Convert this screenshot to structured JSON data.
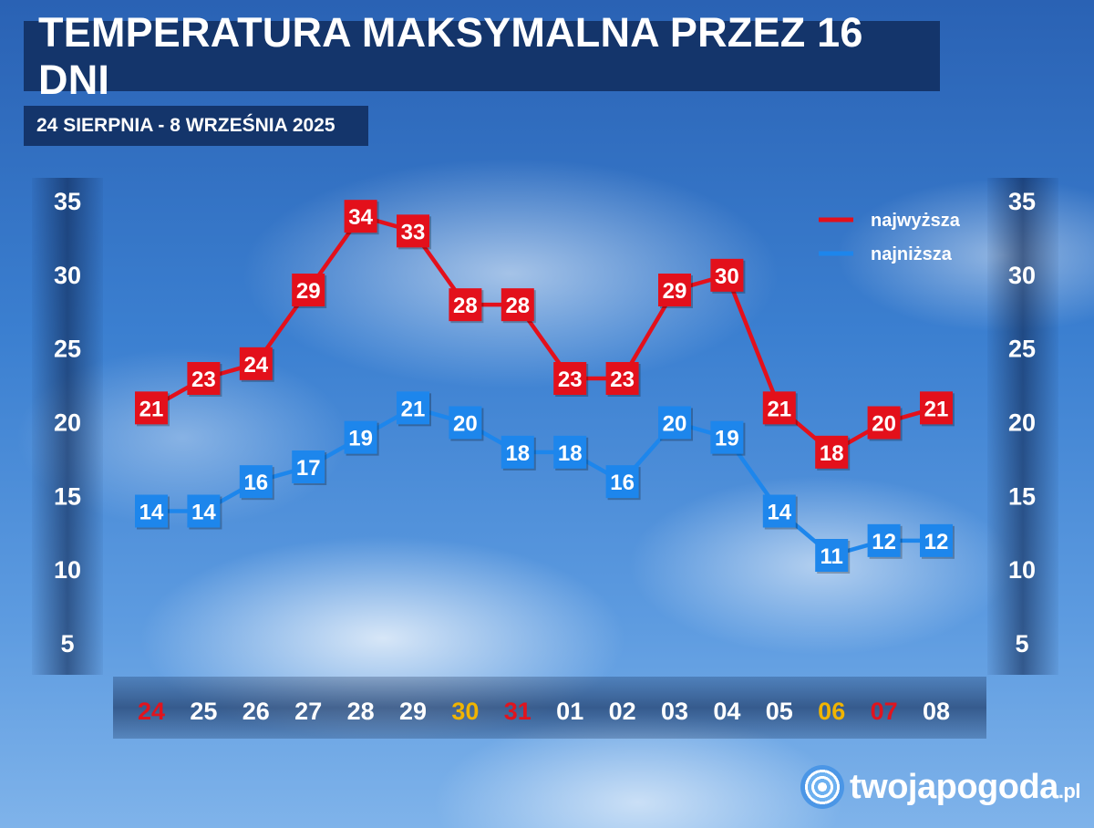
{
  "header": {
    "title": "TEMPERATURA MAKSYMALNA PRZEZ 16 DNI",
    "subtitle": "24 SIERPNIA - 8 WRZEŚNIA 2025"
  },
  "brand": {
    "name": "twojapogoda",
    "suffix": ".pl",
    "icon": "swirl-logo-icon"
  },
  "chart_data": {
    "type": "line",
    "title": "TEMPERATURA MAKSYMALNA PRZEZ 16 DNI",
    "subtitle": "24 SIERPNIA - 8 WRZEŚNIA 2025",
    "categories": [
      "24",
      "25",
      "26",
      "27",
      "28",
      "29",
      "30",
      "31",
      "01",
      "02",
      "03",
      "04",
      "05",
      "06",
      "07",
      "08"
    ],
    "category_colors": [
      "#e0141e",
      "#ffffff",
      "#ffffff",
      "#ffffff",
      "#ffffff",
      "#ffffff",
      "#f0b400",
      "#e0141e",
      "#ffffff",
      "#ffffff",
      "#ffffff",
      "#ffffff",
      "#ffffff",
      "#f0b400",
      "#e0141e",
      "#ffffff"
    ],
    "series": [
      {
        "name": "najwyższa",
        "color": "#e3101b",
        "values": [
          21,
          23,
          24,
          29,
          34,
          33,
          28,
          28,
          23,
          23,
          29,
          30,
          21,
          18,
          20,
          21
        ]
      },
      {
        "name": "najniższa",
        "color": "#1d86ec",
        "values": [
          14,
          14,
          16,
          17,
          19,
          21,
          20,
          18,
          18,
          16,
          20,
          19,
          14,
          11,
          12,
          12
        ]
      }
    ],
    "yticks": [
      35,
      30,
      25,
      20,
      15,
      10,
      5
    ],
    "ylim": [
      5,
      35
    ],
    "grid": false,
    "legend_position": "top-right",
    "data_labels": true
  }
}
